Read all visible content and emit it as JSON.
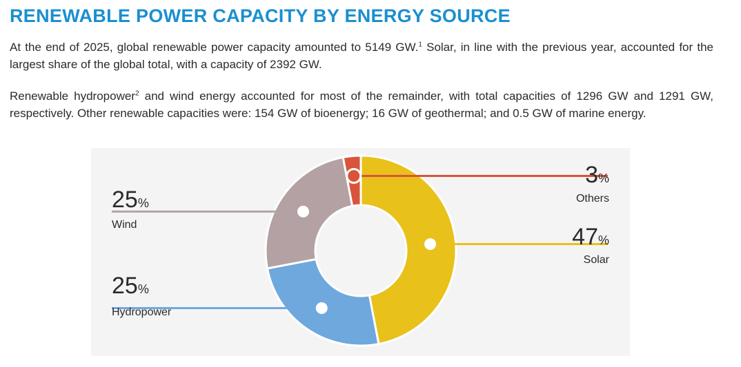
{
  "page": {
    "title": "RENEWABLE POWER CAPACITY BY ENERGY SOURCE",
    "p1_a": "At the end of 2025, global renewable power capacity amounted to 5149 GW.",
    "p1_sup": "1",
    "p1_b": " Solar, in line with the previous year, accounted for the largest share of the global total, with a capacity of 2392 GW.",
    "p2_a": "Renewable hydropower",
    "p2_sup": "2",
    "p2_b": " and wind energy accounted for most of the remainder, with total capacities of 1296 GW and 1291 GW, respectively. Other renewable capacities were: 154 GW of bioenergy; 16 GW of geothermal; and 0.5 GW of marine energy."
  },
  "chart_data": {
    "type": "pie",
    "variant": "donut",
    "unit": "%",
    "slices": [
      {
        "key": "solar",
        "label": "Solar",
        "value": 47,
        "color": "#e8c11a"
      },
      {
        "key": "hydropower",
        "label": "Hydropower",
        "value": 25,
        "color": "#6fa8dc"
      },
      {
        "key": "wind",
        "label": "Wind",
        "value": 25,
        "color": "#b3a1a4"
      },
      {
        "key": "others",
        "label": "Others",
        "value": 3,
        "color": "#d9543a"
      }
    ]
  }
}
